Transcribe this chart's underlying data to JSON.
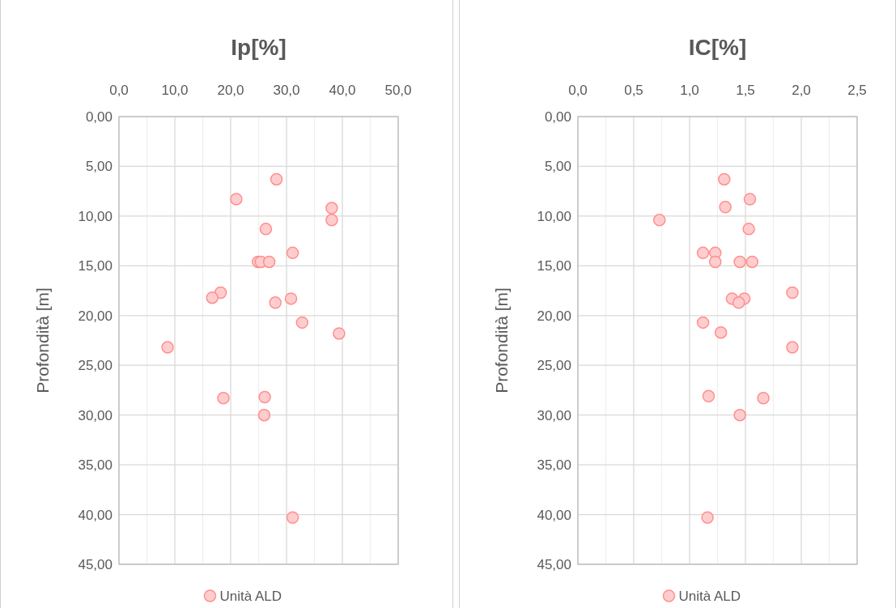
{
  "chart_data": [
    {
      "type": "scatter",
      "title": "Ip[%]",
      "ylabel": "Profondità [m]",
      "xlim": [
        0,
        50
      ],
      "xticks": [
        {
          "value": 0,
          "label": "0,0"
        },
        {
          "value": 5,
          "label": null
        },
        {
          "value": 10,
          "label": "10,0"
        },
        {
          "value": 15,
          "label": null
        },
        {
          "value": 20,
          "label": "20,0"
        },
        {
          "value": 25,
          "label": null
        },
        {
          "value": 30,
          "label": "30,0"
        },
        {
          "value": 35,
          "label": null
        },
        {
          "value": 40,
          "label": "40,0"
        },
        {
          "value": 45,
          "label": null
        },
        {
          "value": 50,
          "label": "50,0"
        }
      ],
      "ylim": [
        45,
        0
      ],
      "yticks": [
        {
          "value": 0,
          "label": "0,00"
        },
        {
          "value": 5,
          "label": "5,00"
        },
        {
          "value": 10,
          "label": "10,00"
        },
        {
          "value": 15,
          "label": "15,00"
        },
        {
          "value": 20,
          "label": "20,00"
        },
        {
          "value": 25,
          "label": "25,00"
        },
        {
          "value": 30,
          "label": "30,00"
        },
        {
          "value": 35,
          "label": "35,00"
        },
        {
          "value": 40,
          "label": "40,00"
        },
        {
          "value": 45,
          "label": "45,00"
        }
      ],
      "grid": true,
      "legend": "bottom",
      "marker": "circle",
      "series": [
        {
          "name": "Unità ALD",
          "color": "#ff8f8f",
          "x": [
            28.2,
            21.0,
            38.1,
            38.1,
            26.3,
            31.1,
            24.9,
            25.4,
            26.9,
            18.2,
            16.7,
            30.8,
            28.0,
            32.8,
            39.4,
            8.7,
            18.7,
            26.1,
            26.0,
            31.1
          ],
          "values": [
            6.3,
            8.3,
            9.2,
            10.4,
            11.3,
            13.7,
            14.6,
            14.6,
            14.6,
            17.7,
            18.2,
            18.3,
            18.7,
            20.7,
            21.8,
            23.2,
            28.3,
            28.2,
            30.0,
            40.3
          ]
        }
      ]
    },
    {
      "type": "scatter",
      "title": "IC[%]",
      "ylabel": "Profondità [m]",
      "xlim": [
        0,
        2.5
      ],
      "xticks": [
        {
          "value": 0,
          "label": "0,0"
        },
        {
          "value": 0.25,
          "label": null
        },
        {
          "value": 0.5,
          "label": "0,5"
        },
        {
          "value": 0.75,
          "label": null
        },
        {
          "value": 1,
          "label": "1,0"
        },
        {
          "value": 1.25,
          "label": null
        },
        {
          "value": 1.5,
          "label": "1,5"
        },
        {
          "value": 1.75,
          "label": null
        },
        {
          "value": 2,
          "label": "2,0"
        },
        {
          "value": 2.25,
          "label": null
        },
        {
          "value": 2.5,
          "label": "2,5"
        }
      ],
      "ylim": [
        45,
        0
      ],
      "yticks": [
        {
          "value": 0,
          "label": "0,00"
        },
        {
          "value": 5,
          "label": "5,00"
        },
        {
          "value": 10,
          "label": "10,00"
        },
        {
          "value": 15,
          "label": "15,00"
        },
        {
          "value": 20,
          "label": "20,00"
        },
        {
          "value": 25,
          "label": "25,00"
        },
        {
          "value": 30,
          "label": "30,00"
        },
        {
          "value": 35,
          "label": "35,00"
        },
        {
          "value": 40,
          "label": "40,00"
        },
        {
          "value": 45,
          "label": "45,00"
        }
      ],
      "grid": true,
      "legend": "bottom",
      "marker": "circle",
      "series": [
        {
          "name": "Unità ALD",
          "color": "#ff8f8f",
          "x": [
            1.31,
            1.54,
            1.32,
            0.73,
            1.53,
            1.12,
            1.23,
            1.23,
            1.45,
            1.56,
            1.92,
            1.38,
            1.49,
            1.44,
            1.12,
            1.28,
            1.92,
            1.17,
            1.66,
            1.45,
            1.16
          ],
          "values": [
            6.3,
            8.3,
            9.1,
            10.4,
            11.3,
            13.7,
            13.7,
            14.6,
            14.6,
            14.6,
            17.7,
            18.3,
            18.3,
            18.7,
            20.7,
            21.7,
            23.2,
            28.1,
            28.3,
            30.0,
            40.3
          ]
        }
      ]
    }
  ]
}
